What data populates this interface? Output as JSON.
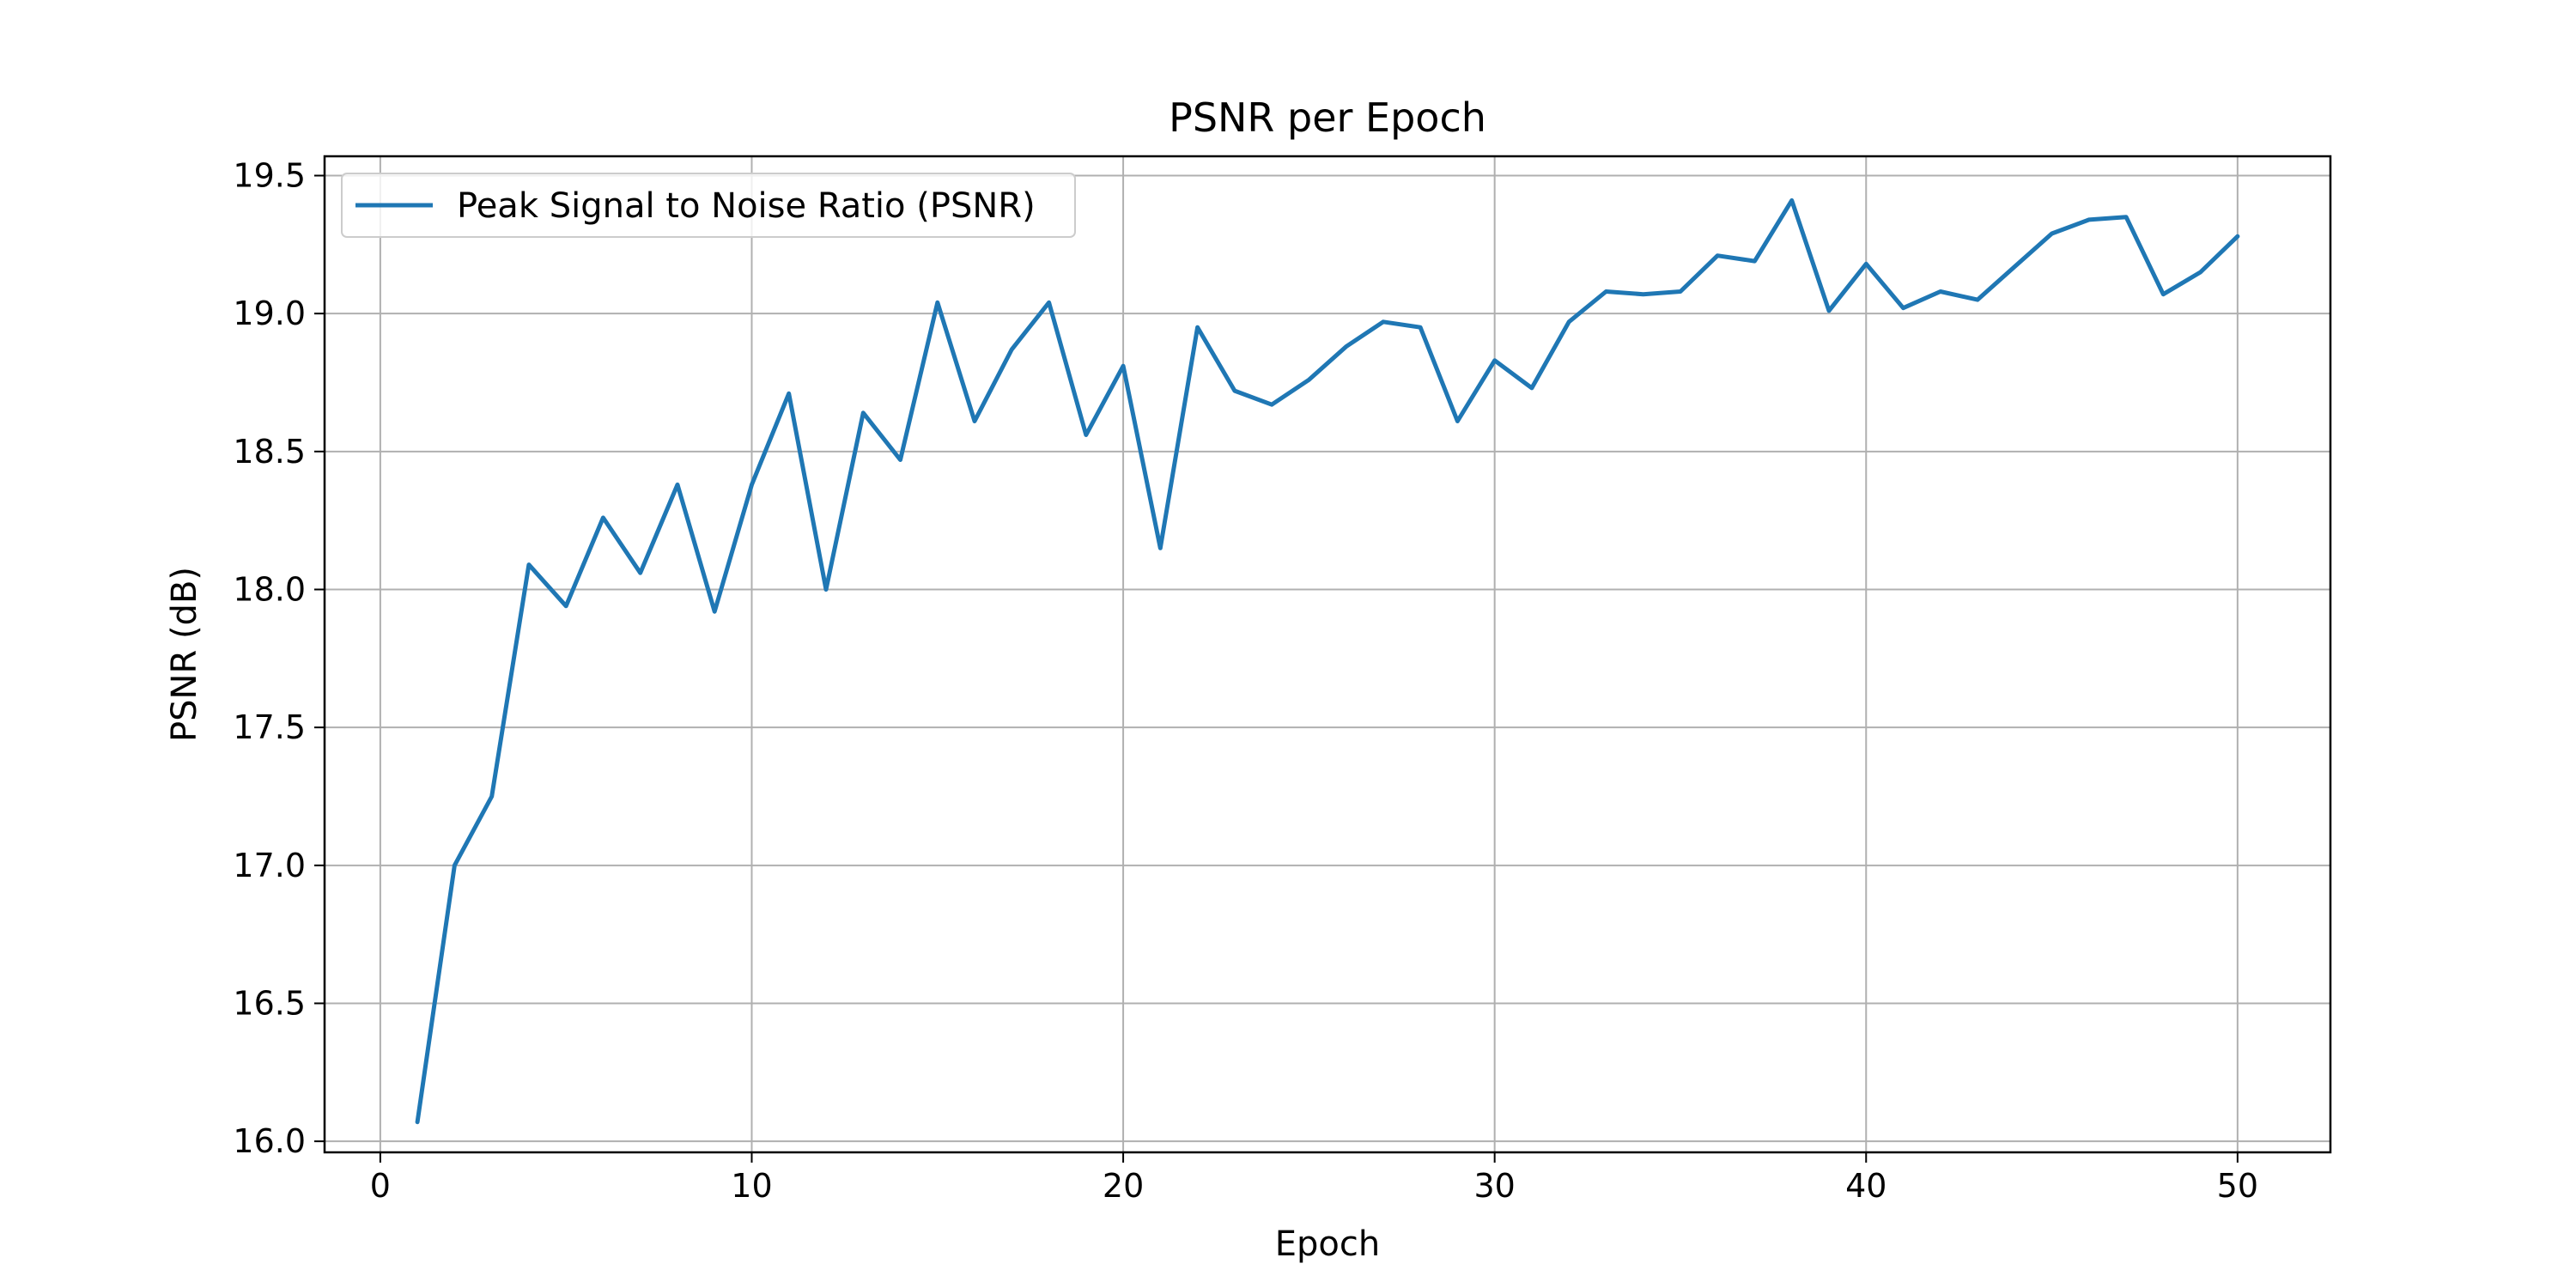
{
  "chart_data": {
    "type": "line",
    "title": "PSNR per Epoch",
    "xlabel": "Epoch",
    "ylabel": "PSNR (dB)",
    "xlim": [
      -1.5,
      52.5
    ],
    "ylim": [
      15.96,
      19.57
    ],
    "xticks": [
      0,
      10,
      20,
      30,
      40,
      50
    ],
    "yticks": [
      16.0,
      16.5,
      17.0,
      17.5,
      18.0,
      18.5,
      19.0,
      19.5
    ],
    "xtick_labels": [
      "0",
      "10",
      "20",
      "30",
      "40",
      "50"
    ],
    "ytick_labels": [
      "16.0",
      "16.5",
      "17.0",
      "17.5",
      "18.0",
      "18.5",
      "19.0",
      "19.5"
    ],
    "grid": true,
    "legend_position": "top-left",
    "series": [
      {
        "name": "Peak Signal to Noise Ratio (PSNR)",
        "color": "#1f77b4",
        "x": [
          1,
          2,
          3,
          4,
          5,
          6,
          7,
          8,
          9,
          10,
          11,
          12,
          13,
          14,
          15,
          16,
          17,
          18,
          19,
          20,
          21,
          22,
          23,
          24,
          25,
          26,
          27,
          28,
          29,
          30,
          31,
          32,
          33,
          34,
          35,
          36,
          37,
          38,
          39,
          40,
          41,
          42,
          43,
          44,
          45,
          46,
          47,
          48,
          49,
          50
        ],
        "y": [
          16.07,
          17.0,
          17.25,
          18.09,
          17.94,
          18.26,
          18.06,
          18.38,
          17.92,
          18.38,
          18.71,
          18.0,
          18.64,
          18.47,
          19.04,
          18.61,
          18.87,
          19.04,
          18.56,
          18.81,
          18.15,
          18.95,
          18.72,
          18.67,
          18.76,
          18.88,
          18.97,
          18.95,
          18.61,
          18.83,
          18.73,
          18.97,
          19.08,
          19.07,
          19.08,
          19.21,
          19.19,
          19.41,
          19.01,
          19.18,
          19.02,
          19.08,
          19.05,
          19.17,
          19.29,
          19.34,
          19.35,
          19.07,
          19.15,
          19.28
        ]
      }
    ]
  }
}
